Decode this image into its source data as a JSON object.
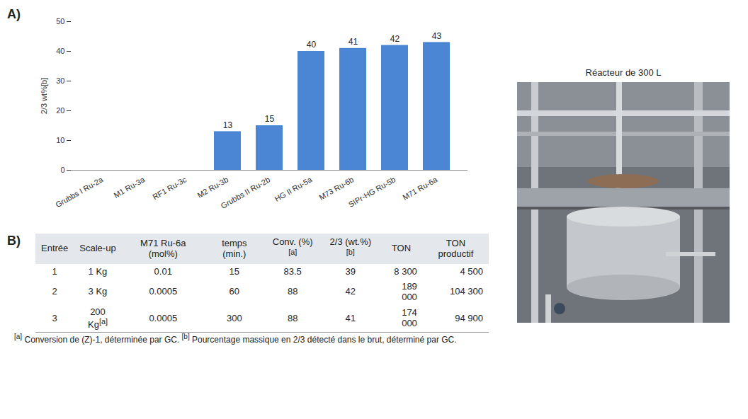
{
  "chart_data": {
    "type": "bar",
    "ylabel": "2/3 wt%[b]",
    "categories": [
      "Grubbs I Ru-2a",
      "M1 Ru-3a",
      "RF1 Ru-3c",
      "M2 Ru-3b",
      "Grubbs II Ru-2b",
      "HG II Ru-5a",
      "M73 Ru-6b",
      "SIPr-HG Ru-5b",
      "M71 Ru-6a"
    ],
    "values": [
      0,
      0,
      0,
      13,
      15,
      40,
      41,
      42,
      43
    ],
    "value_labels": [
      null,
      null,
      null,
      "13",
      "15",
      "40",
      "41",
      "42",
      "43"
    ],
    "color": "#4a86d4",
    "ylim": [
      0,
      50
    ],
    "yticks": [
      0,
      10,
      20,
      30,
      40,
      50
    ],
    "grid": false,
    "data_labels": true
  },
  "panel_labels": [
    "A)",
    "B)"
  ],
  "table": {
    "columns": [
      "Entrée",
      "Scale-up",
      "M71 Ru-6a (mol%)",
      "temps (min.)",
      "Conv. (%)[a]",
      "2/3 (wt.%)[b]",
      "TON",
      "TON productif"
    ],
    "rows": [
      [
        "1",
        "1 Kg",
        "0.01",
        "15",
        "83.5",
        "39",
        "8 300",
        "4 500"
      ],
      [
        "2",
        "3 Kg",
        "0.0005",
        "60",
        "88",
        "42",
        "189 000",
        "104 300"
      ],
      [
        "3",
        "200 Kg[a]",
        "0.0005",
        "300",
        "88",
        "41",
        "174 000",
        "94 900"
      ]
    ]
  },
  "footnote": "[a] Conversion de (Z)-1, déterminée par GC. [b] Pourcentage massique en 2/3 détecté dans le brut, déterminé par GC.",
  "photo": {
    "title": "Réacteur de 300 L"
  }
}
